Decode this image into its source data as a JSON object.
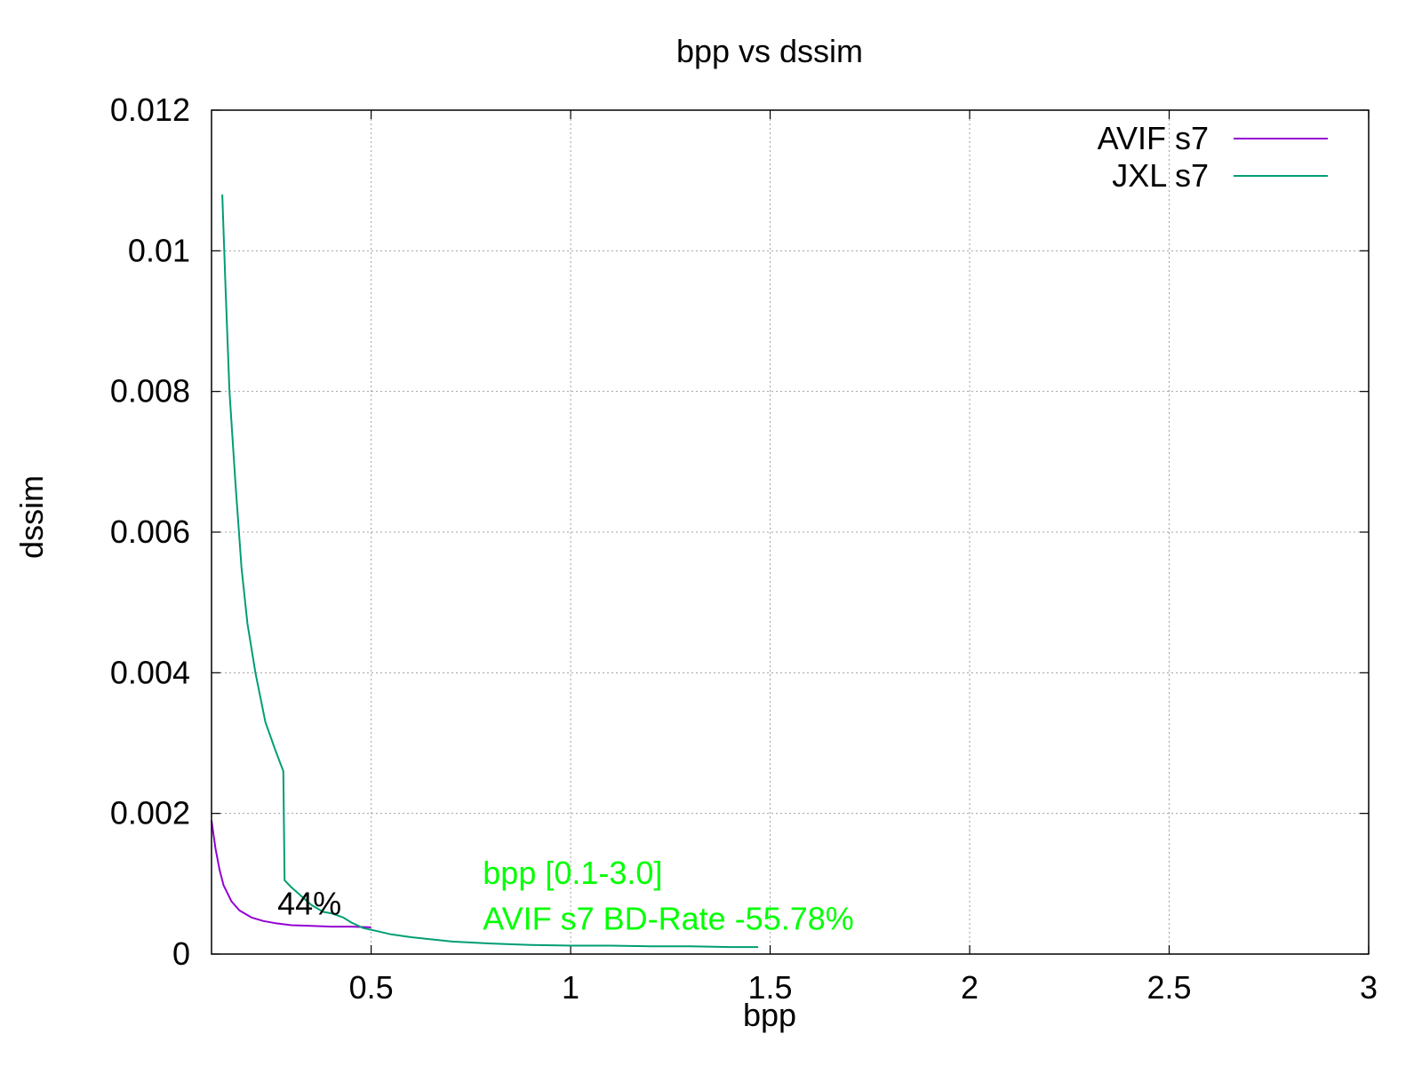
{
  "chart_data": {
    "type": "line",
    "title": "bpp vs dssim",
    "xlabel": "bpp",
    "ylabel": "dssim",
    "xlim": [
      0.1,
      3.0
    ],
    "ylim": [
      0,
      0.012
    ],
    "xticks": [
      {
        "value": 0.5,
        "label": "0.5"
      },
      {
        "value": 1.0,
        "label": "1"
      },
      {
        "value": 1.5,
        "label": "1.5"
      },
      {
        "value": 2.0,
        "label": "2"
      },
      {
        "value": 2.5,
        "label": "2.5"
      },
      {
        "value": 3.0,
        "label": "3"
      }
    ],
    "yticks": [
      {
        "value": 0,
        "label": "0"
      },
      {
        "value": 0.002,
        "label": "0.002"
      },
      {
        "value": 0.004,
        "label": "0.004"
      },
      {
        "value": 0.006,
        "label": "0.006"
      },
      {
        "value": 0.008,
        "label": "0.008"
      },
      {
        "value": 0.01,
        "label": "0.01"
      },
      {
        "value": 0.012,
        "label": "0.012"
      }
    ],
    "grid": true,
    "legend_position": "top-right",
    "series": [
      {
        "name": "AVIF s7",
        "color": "#9400d3",
        "x": [
          0.1,
          0.11,
          0.12,
          0.13,
          0.15,
          0.17,
          0.2,
          0.23,
          0.26,
          0.3,
          0.35,
          0.4,
          0.45,
          0.5
        ],
        "y": [
          0.0019,
          0.0015,
          0.0012,
          0.00098,
          0.00075,
          0.00062,
          0.00052,
          0.00047,
          0.00044,
          0.00041,
          0.0004,
          0.00039,
          0.00039,
          0.00038
        ]
      },
      {
        "name": "JXL s7",
        "color": "#009e73",
        "x": [
          0.127,
          0.135,
          0.145,
          0.16,
          0.175,
          0.19,
          0.21,
          0.235,
          0.26,
          0.28,
          0.283,
          0.3,
          0.32,
          0.35,
          0.38,
          0.4,
          0.43,
          0.45,
          0.48,
          0.52,
          0.55,
          0.6,
          0.7,
          0.8,
          0.9,
          1.0,
          1.1,
          1.2,
          1.3,
          1.4,
          1.47
        ],
        "y": [
          0.0108,
          0.0095,
          0.008,
          0.0067,
          0.0055,
          0.0047,
          0.004,
          0.0033,
          0.0029,
          0.0026,
          0.00105,
          0.00095,
          0.00085,
          0.0007,
          0.0006,
          0.00058,
          0.00052,
          0.00045,
          0.00037,
          0.00032,
          0.00028,
          0.00024,
          0.00018,
          0.00015,
          0.00013,
          0.00012,
          0.00012,
          0.00011,
          0.00011,
          0.0001,
          0.0001
        ]
      }
    ],
    "annotations": [
      {
        "text": "44%",
        "x": 0.265,
        "y": 0.00056,
        "color": "#000000"
      },
      {
        "text": "bpp [0.1-3.0]",
        "x": 0.78,
        "y": 0.001,
        "color": "#00ff00"
      },
      {
        "text": "AVIF s7 BD-Rate -55.78%",
        "x": 0.78,
        "y": 0.00035,
        "color": "#00ff00"
      }
    ]
  }
}
